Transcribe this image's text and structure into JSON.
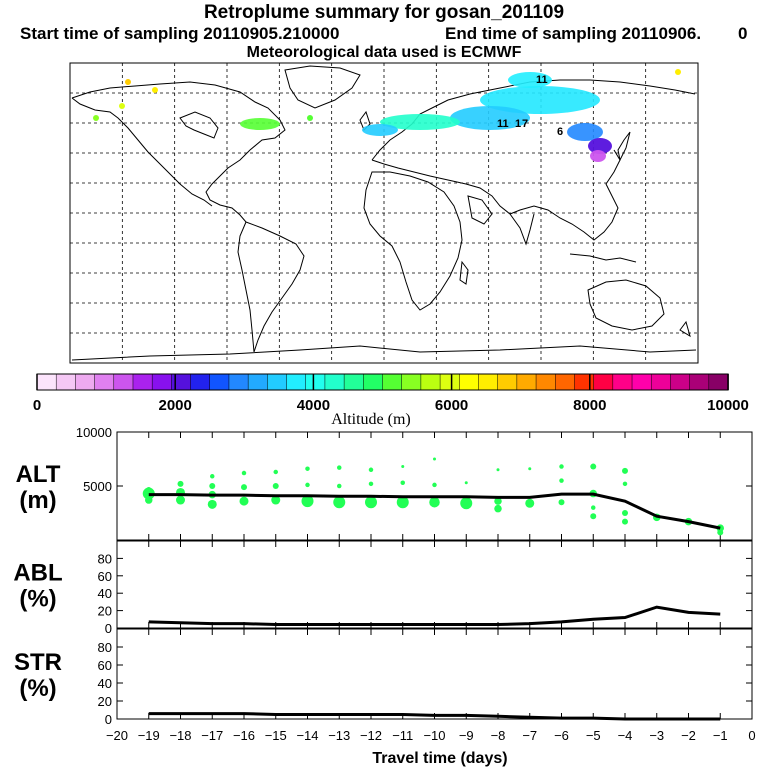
{
  "header": {
    "title": "Retroplume summary for gosan_201109",
    "start_label": "Start time of sampling 20110905.210000",
    "end_label": "End time of sampling 20110906.",
    "end_suffix": "0",
    "met_label": "Meteorological data used is ECMWF"
  },
  "colorbar": {
    "label": "Altitude (m)",
    "ticks": [
      "0",
      "2000",
      "4000",
      "6000",
      "8000",
      "10000"
    ],
    "colors": [
      "#fce4fc",
      "#f5c8f5",
      "#eeaaf0",
      "#e080f0",
      "#cc55ee",
      "#aa22ee",
      "#8811ee",
      "#5511dd",
      "#2222ee",
      "#1155ff",
      "#2288ff",
      "#22aaff",
      "#22ccff",
      "#22eeff",
      "#22ffee",
      "#22ffcc",
      "#22ff99",
      "#22ff66",
      "#55ff33",
      "#88ff22",
      "#bbff11",
      "#ddff11",
      "#ffff00",
      "#ffee00",
      "#ffcc00",
      "#ffaa00",
      "#ff8800",
      "#ff6600",
      "#ff3300",
      "#ff0044",
      "#ff0088",
      "#ff00aa",
      "#ee0099",
      "#cc0088",
      "#aa0077",
      "#880066"
    ]
  },
  "chart_data": [
    {
      "type": "scatter",
      "panel": "ALT",
      "ylabel": "ALT\n(m)",
      "ylabel_lines": [
        "ALT",
        "(m)"
      ],
      "ylim": [
        0,
        10000
      ],
      "xlim": [
        -20,
        0
      ],
      "yticks": [
        "10000",
        "5000"
      ],
      "line_color": "#000000",
      "dot_color": "#22ff55",
      "median_line": {
        "x": [
          -19,
          -18,
          -17,
          -16,
          -15,
          -14,
          -13,
          -12,
          -11,
          -10,
          -9,
          -8,
          -7,
          -6,
          -5,
          -4,
          -3,
          -2,
          -1
        ],
        "y": [
          4200,
          4200,
          4150,
          4150,
          4100,
          4100,
          4050,
          4050,
          4000,
          4000,
          4000,
          3950,
          3950,
          4250,
          4250,
          3600,
          2200,
          1700,
          1100
        ]
      },
      "dots": [
        {
          "x": -19,
          "y": 4300,
          "s": 8
        },
        {
          "x": -19,
          "y": 3700,
          "s": 5
        },
        {
          "x": -19,
          "y": 4700,
          "s": 3
        },
        {
          "x": -18,
          "y": 5200,
          "s": 4
        },
        {
          "x": -18,
          "y": 4400,
          "s": 6
        },
        {
          "x": -18,
          "y": 3700,
          "s": 6
        },
        {
          "x": -17,
          "y": 5900,
          "s": 3
        },
        {
          "x": -17,
          "y": 5000,
          "s": 4
        },
        {
          "x": -17,
          "y": 4200,
          "s": 5
        },
        {
          "x": -17,
          "y": 3300,
          "s": 6
        },
        {
          "x": -16,
          "y": 6200,
          "s": 3
        },
        {
          "x": -16,
          "y": 4900,
          "s": 4
        },
        {
          "x": -16,
          "y": 3600,
          "s": 6
        },
        {
          "x": -15,
          "y": 6300,
          "s": 3
        },
        {
          "x": -15,
          "y": 5000,
          "s": 4
        },
        {
          "x": -15,
          "y": 3700,
          "s": 6
        },
        {
          "x": -14,
          "y": 6600,
          "s": 3
        },
        {
          "x": -14,
          "y": 5100,
          "s": 3
        },
        {
          "x": -14,
          "y": 3600,
          "s": 8
        },
        {
          "x": -13,
          "y": 6700,
          "s": 3
        },
        {
          "x": -13,
          "y": 5000,
          "s": 3
        },
        {
          "x": -13,
          "y": 3500,
          "s": 8
        },
        {
          "x": -12,
          "y": 6500,
          "s": 3
        },
        {
          "x": -12,
          "y": 5200,
          "s": 3
        },
        {
          "x": -12,
          "y": 3500,
          "s": 8
        },
        {
          "x": -11,
          "y": 6800,
          "s": 2
        },
        {
          "x": -11,
          "y": 5300,
          "s": 3
        },
        {
          "x": -11,
          "y": 3500,
          "s": 8
        },
        {
          "x": -10,
          "y": 7500,
          "s": 2
        },
        {
          "x": -10,
          "y": 5100,
          "s": 3
        },
        {
          "x": -10,
          "y": 3500,
          "s": 7
        },
        {
          "x": -9,
          "y": 5300,
          "s": 2
        },
        {
          "x": -9,
          "y": 3400,
          "s": 8
        },
        {
          "x": -8,
          "y": 6500,
          "s": 2
        },
        {
          "x": -8,
          "y": 3600,
          "s": 5
        },
        {
          "x": -8,
          "y": 2900,
          "s": 5
        },
        {
          "x": -7,
          "y": 6600,
          "s": 2
        },
        {
          "x": -7,
          "y": 3400,
          "s": 6
        },
        {
          "x": -6,
          "y": 6800,
          "s": 3
        },
        {
          "x": -6,
          "y": 5500,
          "s": 3
        },
        {
          "x": -6,
          "y": 3500,
          "s": 4
        },
        {
          "x": -5,
          "y": 6800,
          "s": 4
        },
        {
          "x": -5,
          "y": 4300,
          "s": 5
        },
        {
          "x": -5,
          "y": 3000,
          "s": 3
        },
        {
          "x": -5,
          "y": 2200,
          "s": 4
        },
        {
          "x": -4,
          "y": 6400,
          "s": 4
        },
        {
          "x": -4,
          "y": 5200,
          "s": 3
        },
        {
          "x": -4,
          "y": 2500,
          "s": 4
        },
        {
          "x": -4,
          "y": 1700,
          "s": 4
        },
        {
          "x": -3,
          "y": 2100,
          "s": 5
        },
        {
          "x": -2,
          "y": 1700,
          "s": 5
        },
        {
          "x": -1,
          "y": 1100,
          "s": 5
        },
        {
          "x": -1,
          "y": 700,
          "s": 4
        }
      ]
    },
    {
      "type": "line",
      "panel": "ABL",
      "ylabel_lines": [
        "ABL",
        "(%)"
      ],
      "ylim": [
        0,
        100
      ],
      "xlim": [
        -20,
        0
      ],
      "yticks": [
        "0",
        "20",
        "40",
        "60",
        "80"
      ],
      "x": [
        -19,
        -18,
        -17,
        -16,
        -15,
        -14,
        -13,
        -12,
        -11,
        -10,
        -9,
        -8,
        -7,
        -6,
        -5,
        -4,
        -3,
        -2,
        -1
      ],
      "y": [
        7,
        6,
        5,
        5,
        4,
        4,
        4,
        4,
        4,
        4,
        4,
        4,
        5,
        7,
        10,
        12,
        24,
        18,
        16
      ]
    },
    {
      "type": "line",
      "panel": "STR",
      "ylabel_lines": [
        "STR",
        "(%)"
      ],
      "ylim": [
        0,
        100
      ],
      "xlim": [
        -20,
        0
      ],
      "yticks": [
        "0",
        "20",
        "40",
        "60",
        "80"
      ],
      "xlabel": "Travel time (days)",
      "xticks": [
        "-20",
        "-19",
        "-18",
        "-17",
        "-16",
        "-15",
        "-14",
        "-13",
        "-12",
        "-11",
        "-10",
        "-9",
        "-8",
        "-7",
        "-6",
        "-5",
        "-4",
        "-3",
        "-2",
        "-1",
        "0"
      ],
      "x": [
        -19,
        -18,
        -17,
        -16,
        -15,
        -14,
        -13,
        -12,
        -11,
        -10,
        -9,
        -8,
        -7,
        -6,
        -5,
        -4,
        -3,
        -2,
        -1
      ],
      "y": [
        6,
        6,
        6,
        6,
        5,
        5,
        5,
        5,
        5,
        4,
        4,
        3,
        2,
        1,
        1,
        0,
        0,
        0,
        0
      ]
    }
  ],
  "map": {
    "plume_labels": [
      "11",
      "11",
      "1",
      "7",
      "6"
    ]
  }
}
